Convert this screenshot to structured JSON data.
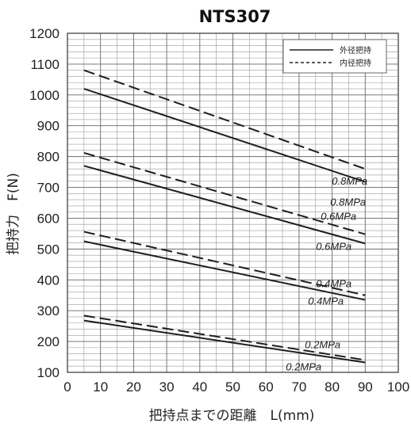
{
  "chart_data": {
    "type": "line",
    "title": "NTS307",
    "xlabel": "把持点までの距離　L(mm)",
    "ylabel": "把持力　F(N)",
    "xlim": [
      0,
      100
    ],
    "ylim": [
      100,
      1200
    ],
    "x_ticks": [
      0,
      10,
      20,
      30,
      40,
      50,
      60,
      70,
      80,
      90,
      100
    ],
    "y_ticks": [
      100,
      200,
      300,
      400,
      500,
      600,
      700,
      800,
      900,
      1000,
      1100,
      1200
    ],
    "grid": true,
    "legend_position": "top-right",
    "legend": [
      {
        "label": "外径把持",
        "style": "solid"
      },
      {
        "label": "内径把持",
        "style": "dashed"
      }
    ],
    "series": [
      {
        "name": "外径把持",
        "label": "0.8MPa",
        "style": "solid",
        "x": [
          5,
          90
        ],
        "y": [
          1020,
          718
        ]
      },
      {
        "name": "内径把持",
        "label": "0.8MPa",
        "style": "dashed",
        "x": [
          5,
          90
        ],
        "y": [
          1080,
          760
        ]
      },
      {
        "name": "外径把持",
        "label": "0.6MPa",
        "style": "solid",
        "x": [
          5,
          90
        ],
        "y": [
          770,
          518
        ]
      },
      {
        "name": "内径把持",
        "label": "0.6MPa",
        "style": "dashed",
        "x": [
          5,
          90
        ],
        "y": [
          812,
          548
        ]
      },
      {
        "name": "外径把持",
        "label": "0.4MPa",
        "style": "solid",
        "x": [
          5,
          90
        ],
        "y": [
          525,
          335
        ]
      },
      {
        "name": "内径把持",
        "label": "0.4MPa",
        "style": "dashed",
        "x": [
          5,
          90
        ],
        "y": [
          556,
          350
        ]
      },
      {
        "name": "外径把持",
        "label": "0.2MPa",
        "style": "solid",
        "x": [
          5,
          90
        ],
        "y": [
          268,
          132
        ]
      },
      {
        "name": "内径把持",
        "label": "0.2MPa",
        "style": "dashed",
        "x": [
          5,
          90
        ],
        "y": [
          284,
          140
        ]
      }
    ]
  }
}
